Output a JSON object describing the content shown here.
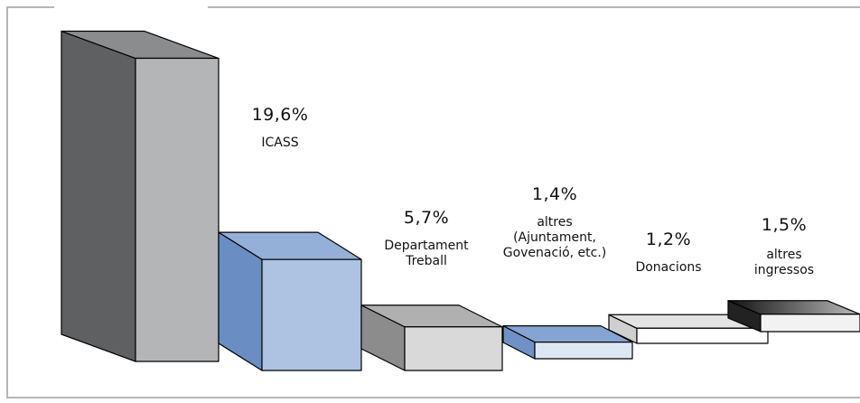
{
  "chart_data": {
    "type": "bar",
    "categories": [
      null,
      "ICASS",
      "Departament Treball",
      "altres (Ajuntament, Govenació, etc.)",
      "Donacions",
      "altres ingressos"
    ],
    "values": [
      70.6,
      19.6,
      5.7,
      1.4,
      1.2,
      1.5
    ],
    "value_labels": [
      null,
      "19,6%",
      "5,7%",
      "1,4%",
      "1,2%",
      "1,5%"
    ],
    "colors": [
      "#b4b5b7",
      "#adc3e1",
      "#d9d9d9",
      "#dde7f4",
      "#ffffff",
      "#f2f2f2"
    ]
  }
}
